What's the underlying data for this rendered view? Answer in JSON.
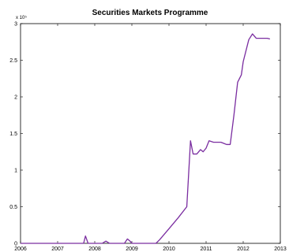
{
  "chart_data": {
    "type": "line",
    "title": "Securities Markets Programme",
    "xlabel": "",
    "ylabel": "",
    "y_exponent_label": "x 10⁵",
    "y_multiplier": 100000,
    "xlim": [
      2006,
      2013
    ],
    "ylim": [
      0,
      300000
    ],
    "x_ticks": [
      2006,
      2007,
      2008,
      2009,
      2010,
      2011,
      2012,
      2013
    ],
    "x_tick_labels": [
      "2006",
      "2007",
      "2008",
      "2009",
      "2010",
      "2011",
      "2012",
      "2013"
    ],
    "y_ticks": [
      0,
      50000,
      100000,
      150000,
      200000,
      250000,
      300000
    ],
    "y_tick_labels": [
      "0",
      "0.5",
      "1",
      "1.5",
      "2",
      "2.5",
      "3"
    ],
    "grid": false,
    "series": [
      {
        "color": "#7a2da0",
        "x": [
          2006.0,
          2007.7,
          2007.75,
          2007.82,
          2008.2,
          2008.3,
          2008.4,
          2008.8,
          2008.88,
          2008.95,
          2009.0,
          2009.65,
          2009.75,
          2010.0,
          2010.25,
          2010.48,
          2010.58,
          2010.65,
          2010.75,
          2010.85,
          2010.92,
          2011.0,
          2011.08,
          2011.2,
          2011.4,
          2011.5,
          2011.55,
          2011.65,
          2011.75,
          2011.85,
          2011.95,
          2012.0,
          2012.15,
          2012.25,
          2012.35,
          2012.5,
          2012.65,
          2012.72
        ],
        "y": [
          0,
          0,
          10000,
          0,
          0,
          3000,
          0,
          0,
          6000,
          3000,
          0,
          0,
          5000,
          20000,
          35000,
          50000,
          140000,
          122000,
          122000,
          128000,
          125000,
          130000,
          140000,
          138000,
          138000,
          136000,
          135000,
          135000,
          175000,
          220000,
          230000,
          248000,
          278000,
          286000,
          280000,
          280000,
          280000,
          279000
        ]
      }
    ]
  }
}
